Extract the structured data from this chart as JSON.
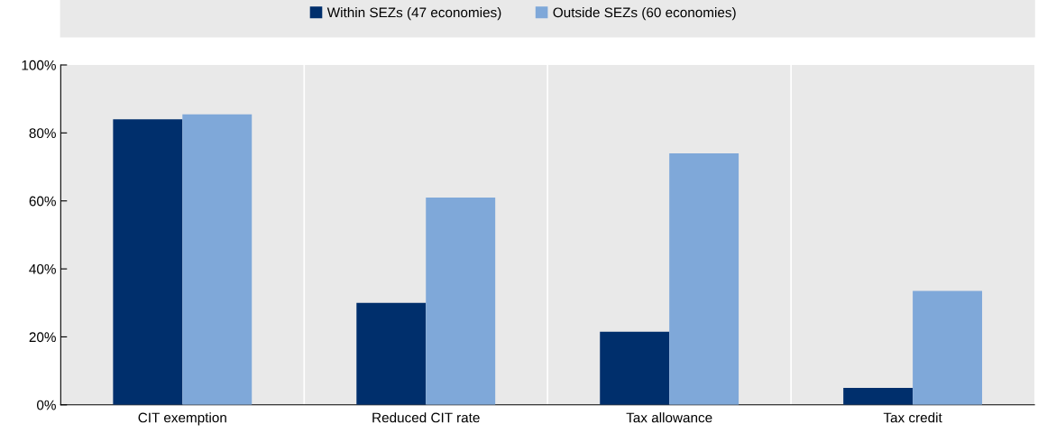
{
  "chart_data": {
    "type": "bar",
    "categories": [
      "CIT exemption",
      "Reduced CIT rate",
      "Tax allowance",
      "Tax credit"
    ],
    "series": [
      {
        "name": "Within SEZs (47 economies)",
        "color": "#002f6c",
        "values": [
          84,
          30,
          21.5,
          5
        ]
      },
      {
        "name": "Outside SEZs (60 economies)",
        "color": "#7fa8d9",
        "values": [
          85.5,
          61,
          74,
          33.5
        ]
      }
    ],
    "ylim": [
      0,
      100
    ],
    "yticks": [
      {
        "value": 0,
        "label": "0%"
      },
      {
        "value": 20,
        "label": "20%"
      },
      {
        "value": 40,
        "label": "40%"
      },
      {
        "value": 60,
        "label": "60%"
      },
      {
        "value": 80,
        "label": "80%"
      },
      {
        "value": 100,
        "label": "100%"
      }
    ],
    "grid": "x",
    "legend": "top"
  }
}
